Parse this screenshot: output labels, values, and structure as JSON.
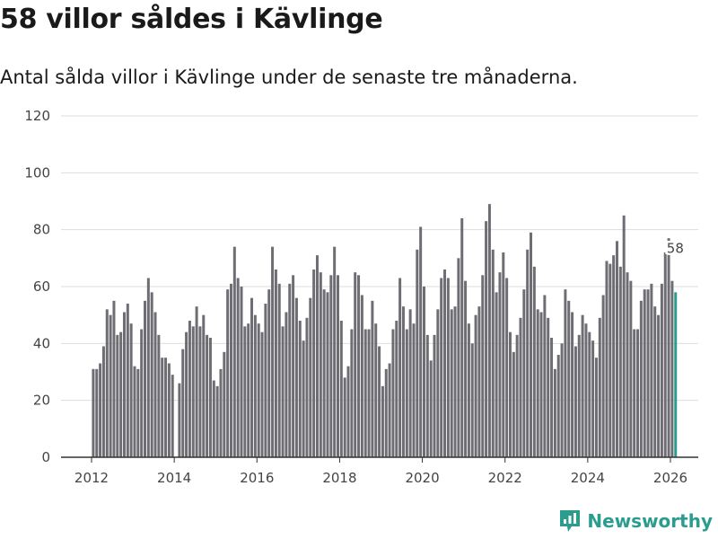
{
  "header": {
    "title": "58 villor såldes i Kävlinge",
    "subtitle": "Antal sålda villor i Kävlinge under de senaste tre månaderna."
  },
  "brand": {
    "name": "Newsworthy",
    "color": "#2a9d8f"
  },
  "colors": {
    "bar": "#6e6d73",
    "highlight": "#2a9d8f",
    "grid": "#dddddd",
    "axis": "#333333"
  },
  "chart_data": {
    "type": "bar",
    "title": "58 villor såldes i Kävlinge",
    "subtitle": "Antal sålda villor i Kävlinge under de senaste tre månaderna.",
    "xlabel": "",
    "ylabel": "",
    "ylim": [
      0,
      120
    ],
    "yticks": [
      0,
      20,
      40,
      60,
      80,
      100,
      120
    ],
    "xticks": [
      "2012",
      "2014",
      "2016",
      "2018",
      "2020",
      "2022",
      "2024",
      "2026"
    ],
    "start": "2012-01",
    "last_label": "58",
    "values": [
      31,
      31,
      33,
      39,
      52,
      50,
      55,
      43,
      44,
      51,
      54,
      47,
      32,
      31,
      45,
      55,
      63,
      58,
      51,
      43,
      35,
      35,
      33,
      29,
      0,
      26,
      38,
      44,
      48,
      46,
      53,
      46,
      50,
      43,
      42,
      27,
      25,
      31,
      37,
      59,
      61,
      74,
      63,
      60,
      46,
      47,
      56,
      50,
      47,
      44,
      54,
      59,
      74,
      66,
      61,
      46,
      51,
      61,
      64,
      56,
      48,
      41,
      49,
      56,
      66,
      71,
      65,
      59,
      58,
      64,
      74,
      64,
      48,
      28,
      32,
      45,
      65,
      64,
      57,
      45,
      45,
      55,
      47,
      39,
      25,
      31,
      33,
      45,
      48,
      63,
      53,
      45,
      52,
      47,
      73,
      81,
      60,
      43,
      34,
      43,
      52,
      63,
      66,
      63,
      52,
      53,
      70,
      84,
      62,
      47,
      40,
      50,
      53,
      64,
      83,
      89,
      73,
      58,
      65,
      72,
      63,
      44,
      37,
      43,
      49,
      59,
      73,
      79,
      67,
      52,
      51,
      57,
      49,
      42,
      31,
      36,
      40,
      59,
      55,
      51,
      39,
      43,
      50,
      47,
      44,
      41,
      35,
      49,
      57,
      69,
      68,
      71,
      76,
      67,
      85,
      65,
      62,
      45,
      45,
      55,
      59,
      59,
      61,
      53,
      50,
      61,
      72,
      77,
      62,
      58
    ]
  }
}
